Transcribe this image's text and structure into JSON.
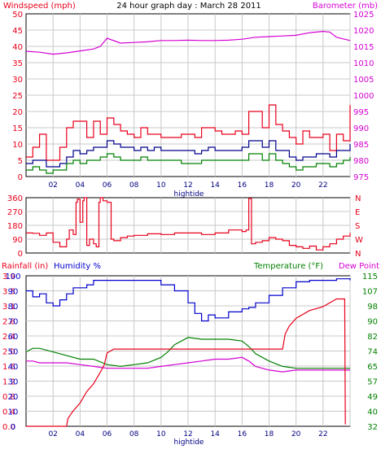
{
  "colors": {
    "windspeed": "#e8001b",
    "gust": "#e8001b",
    "wind_avg": "#00008b",
    "wind_low": "#008000",
    "barometer": "#d400d4",
    "direction": "#e8001b",
    "rainfall": "#e8001b",
    "humidity": "#0000cc",
    "temperature": "#008000",
    "dewpoint": "#d400d4",
    "grid": "#c8c8c8"
  },
  "chart_data": [
    {
      "type": "line",
      "title": "24 hour graph day : March 28 2011",
      "left_label": "Windspeed (mph)",
      "right_label": "Barometer (mb)",
      "x_ticks": [
        "02",
        "04",
        "06",
        "08",
        "10",
        "12",
        "14",
        "16",
        "18",
        "20",
        "22",
        ""
      ],
      "x_note": "hightide",
      "ylim": [
        0,
        50
      ],
      "y_ticks": [
        "0",
        "5",
        "10",
        "15",
        "20",
        "25",
        "30",
        "35",
        "40",
        "45",
        "50"
      ],
      "y2lim": [
        975,
        1025
      ],
      "y2_ticks": [
        "975",
        "980",
        "985",
        "990",
        "995",
        "1000",
        "1005",
        "1010",
        "1015",
        "1020",
        "1025"
      ],
      "x_range": [
        0,
        24
      ],
      "series": [
        {
          "key": "gust",
          "axis": "left",
          "color_key": "windspeed",
          "x": [
            0,
            0.5,
            1,
            1.5,
            2,
            2.5,
            3,
            3.5,
            4,
            4.5,
            5,
            5.5,
            6,
            6.5,
            7,
            7.5,
            8,
            8.5,
            9,
            9.5,
            10,
            10.5,
            11,
            11.5,
            12,
            12.5,
            13,
            13.5,
            14,
            14.5,
            15,
            15.5,
            16,
            16.5,
            17,
            17.5,
            18,
            18.5,
            19,
            19.5,
            20,
            20.5,
            21,
            21.5,
            22,
            22.5,
            23,
            23.5,
            24
          ],
          "y": [
            6,
            9,
            13,
            5,
            5,
            9,
            15,
            17,
            17,
            12,
            17,
            13,
            18,
            16,
            14,
            13,
            12,
            15,
            13,
            13,
            12,
            12,
            12,
            13,
            13,
            12,
            15,
            15,
            14,
            13,
            13,
            14,
            13,
            20,
            20,
            15,
            22,
            16,
            14,
            12,
            10,
            14,
            12,
            12,
            13,
            8,
            13,
            11,
            22
          ]
        },
        {
          "key": "wind_avg",
          "axis": "left",
          "color_key": "wind_avg",
          "x": [
            0,
            0.5,
            1,
            1.5,
            2,
            2.5,
            3,
            3.5,
            4,
            4.5,
            5,
            5.5,
            6,
            6.5,
            7,
            7.5,
            8,
            8.5,
            9,
            9.5,
            10,
            10.5,
            11,
            11.5,
            12,
            12.5,
            13,
            13.5,
            14,
            14.5,
            15,
            15.5,
            16,
            16.5,
            17,
            17.5,
            18,
            18.5,
            19,
            19.5,
            20,
            20.5,
            21,
            21.5,
            22,
            22.5,
            23,
            23.5,
            24
          ],
          "y": [
            4,
            5,
            5,
            3,
            3,
            4,
            6,
            8,
            7,
            8,
            9,
            9,
            11,
            10,
            9,
            9,
            8,
            9,
            8,
            9,
            8,
            8,
            8,
            8,
            8,
            7,
            8,
            9,
            8,
            8,
            8,
            8,
            9,
            11,
            11,
            9,
            11,
            8,
            8,
            6,
            5,
            6,
            6,
            7,
            7,
            6,
            8,
            8,
            10
          ]
        },
        {
          "key": "wind_low",
          "axis": "left",
          "color_key": "wind_low",
          "x": [
            0,
            0.5,
            1,
            1.5,
            2,
            2.5,
            3,
            3.5,
            4,
            4.5,
            5,
            5.5,
            6,
            6.5,
            7,
            7.5,
            8,
            8.5,
            9,
            9.5,
            10,
            10.5,
            11,
            11.5,
            12,
            12.5,
            13,
            13.5,
            14,
            14.5,
            15,
            15.5,
            16,
            16.5,
            17,
            17.5,
            18,
            18.5,
            19,
            19.5,
            20,
            20.5,
            21,
            21.5,
            22,
            22.5,
            23,
            23.5,
            24
          ],
          "y": [
            2,
            3,
            2,
            1,
            2,
            2,
            4,
            5,
            4,
            5,
            5,
            6,
            7,
            6,
            5,
            5,
            5,
            6,
            5,
            5,
            5,
            5,
            5,
            4,
            4,
            4,
            5,
            5,
            5,
            5,
            5,
            5,
            5,
            7,
            7,
            5,
            7,
            5,
            4,
            3,
            2,
            3,
            3,
            4,
            4,
            3,
            4,
            5,
            6
          ]
        },
        {
          "key": "barometer",
          "axis": "right",
          "color_key": "barometer",
          "x": [
            0,
            1,
            2,
            3,
            4,
            5,
            5.5,
            6,
            7,
            8,
            9,
            10,
            11,
            12,
            13,
            14,
            15,
            16,
            17,
            18,
            19,
            20,
            21,
            22,
            22.5,
            23,
            24
          ],
          "y": [
            1013.5,
            1013.2,
            1012.6,
            1013,
            1013.6,
            1014.2,
            1015,
            1017.5,
            1016,
            1016.2,
            1016.4,
            1016.8,
            1016.8,
            1016.9,
            1016.8,
            1016.8,
            1016.9,
            1017.2,
            1017.8,
            1018,
            1018.2,
            1018.4,
            1019.2,
            1019.6,
            1019.4,
            1017.8,
            1016.8
          ]
        }
      ]
    },
    {
      "type": "line",
      "left_ticks": [
        "0",
        "90",
        "180",
        "270",
        "360"
      ],
      "ylim": [
        0,
        360
      ],
      "right_ticks": [
        "N",
        "W",
        "S",
        "E",
        "N"
      ],
      "x_range": [
        0,
        24
      ],
      "series": [
        {
          "key": "direction",
          "color_key": "direction",
          "x": [
            0,
            0.5,
            1,
            1.5,
            2,
            2.5,
            3,
            3.2,
            3.5,
            3.7,
            3.8,
            4,
            4.2,
            4.3,
            4.5,
            4.7,
            5,
            5.2,
            5.4,
            5.5,
            5.7,
            6,
            6.3,
            6.5,
            7,
            7.5,
            8,
            9,
            10,
            11,
            12,
            13,
            14,
            15,
            16,
            16.3,
            16.5,
            16.7,
            17,
            17.5,
            18,
            18.5,
            19,
            19.5,
            20,
            20.5,
            21,
            21.5,
            22,
            22.5,
            23,
            23.5,
            24
          ],
          "y": [
            130,
            128,
            115,
            130,
            70,
            40,
            90,
            150,
            120,
            330,
            350,
            200,
            340,
            360,
            50,
            90,
            60,
            40,
            330,
            360,
            340,
            330,
            90,
            80,
            100,
            110,
            115,
            125,
            120,
            130,
            130,
            120,
            130,
            150,
            140,
            150,
            355,
            60,
            70,
            80,
            100,
            90,
            80,
            50,
            40,
            30,
            45,
            20,
            40,
            60,
            90,
            110,
            130
          ]
        }
      ]
    },
    {
      "type": "line",
      "left_label": "Rainfall (in)",
      "left2_label": "Humidity %",
      "right_label": "Temperature (°F)",
      "right2_label": "Dew Point",
      "rain_ticks": [
        "0.0",
        "0.4",
        "0.8",
        "1.2",
        "1.6",
        "2.0",
        "2.4",
        "2.8",
        "3.1",
        "3.5",
        "3.9"
      ],
      "rain_lim": [
        0,
        3.9
      ],
      "hum_ticks": [
        "0",
        "10",
        "20",
        "30",
        "40",
        "50",
        "60",
        "70",
        "80",
        "90",
        "100"
      ],
      "hum_lim": [
        0,
        100
      ],
      "temp_ticks": [
        "32",
        "40",
        "49",
        "57",
        "65",
        "74",
        "82",
        "90",
        "98",
        "107",
        "115"
      ],
      "temp_lim": [
        32,
        115
      ],
      "x_ticks": [
        "02",
        "04",
        "06",
        "08",
        "10",
        "12",
        "14",
        "16",
        "18",
        "20",
        "22",
        ""
      ],
      "x_note": "hightide",
      "x_range": [
        0,
        24
      ],
      "series": [
        {
          "key": "humidity",
          "axis": "hum",
          "color_key": "humidity",
          "x": [
            0,
            0.5,
            1,
            1.5,
            2,
            2.5,
            3,
            3.5,
            4,
            4.5,
            5,
            5.5,
            6,
            7,
            8,
            9,
            10,
            11,
            12,
            12.5,
            13,
            13.5,
            14,
            15,
            16,
            16.5,
            17,
            18,
            19,
            20,
            21,
            22,
            23,
            24
          ],
          "y": [
            90,
            86,
            88,
            82,
            80,
            84,
            88,
            92,
            92,
            94,
            97,
            97,
            97,
            97,
            97,
            97,
            94,
            90,
            82,
            75,
            70,
            74,
            72,
            76,
            78,
            79,
            82,
            87,
            92,
            96,
            97,
            97,
            98,
            97
          ]
        },
        {
          "key": "temperature",
          "axis": "temp",
          "color_key": "temperature",
          "x": [
            0,
            0.5,
            1,
            2,
            3,
            4,
            5,
            6,
            7,
            8,
            9,
            10,
            10.5,
            11,
            12,
            13,
            14,
            15,
            16,
            16.5,
            17,
            18,
            19,
            20,
            21,
            22,
            23,
            24
          ],
          "y": [
            73,
            75,
            75,
            73,
            71,
            69,
            69,
            66,
            65,
            66,
            67,
            70,
            73,
            77,
            81,
            80,
            80,
            80,
            79,
            76,
            72,
            68,
            65,
            64,
            64,
            64,
            64,
            64
          ]
        },
        {
          "key": "dewpoint",
          "axis": "temp",
          "color_key": "dewpoint",
          "x": [
            0,
            0.5,
            1,
            2,
            3,
            4,
            5,
            6,
            7,
            8,
            9,
            10,
            11,
            12,
            13,
            14,
            15,
            16,
            16.5,
            17,
            18,
            19,
            20,
            21,
            22,
            23,
            24
          ],
          "y": [
            68,
            68,
            67,
            67,
            67,
            66,
            65,
            64,
            64,
            64,
            64,
            65,
            66,
            67,
            68,
            69,
            69,
            70,
            68,
            65,
            63,
            62,
            63,
            63,
            63,
            63,
            63
          ]
        },
        {
          "key": "rainfall",
          "axis": "rain",
          "color_key": "rainfall",
          "x": [
            0,
            3,
            3.1,
            3.5,
            4,
            4.5,
            5,
            5.5,
            5.8,
            6,
            6.5,
            7,
            10,
            16,
            18,
            19,
            19.2,
            19.5,
            20,
            21,
            22,
            23,
            23.6,
            23.65
          ],
          "y": [
            0,
            0,
            0.2,
            0.4,
            0.6,
            0.9,
            1.1,
            1.4,
            1.6,
            1.9,
            2.0,
            2.0,
            2.0,
            2.0,
            2.0,
            2.0,
            2.4,
            2.6,
            2.8,
            3.0,
            3.1,
            3.3,
            3.3,
            0.05
          ]
        }
      ]
    }
  ]
}
